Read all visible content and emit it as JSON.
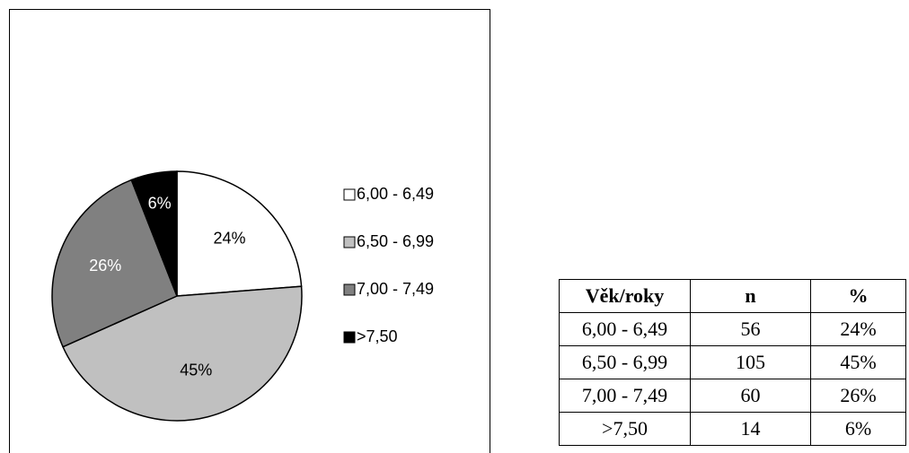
{
  "chart_data": {
    "type": "pie",
    "categories": [
      "6,00 - 6,49",
      "6,50 - 6,99",
      "7,00 - 7,49",
      ">7,50"
    ],
    "values": [
      24,
      45,
      26,
      6
    ],
    "value_labels": [
      "24%",
      "45%",
      "26%",
      "6%"
    ],
    "colors": [
      "#ffffff",
      "#c0c0c0",
      "#808080",
      "#000000"
    ],
    "label_colors": [
      "#000000",
      "#000000",
      "#ffffff",
      "#ffffff"
    ],
    "legend": "right"
  },
  "table": {
    "header": [
      "Věk/roky",
      "n",
      "%"
    ],
    "rows": [
      [
        "6,00 - 6,49",
        "56",
        "24%"
      ],
      [
        "6,50 - 6,99",
        "105",
        "45%"
      ],
      [
        "7,00 - 7,49",
        "60",
        "26%"
      ],
      [
        ">7,50",
        "14",
        "6%"
      ]
    ]
  }
}
